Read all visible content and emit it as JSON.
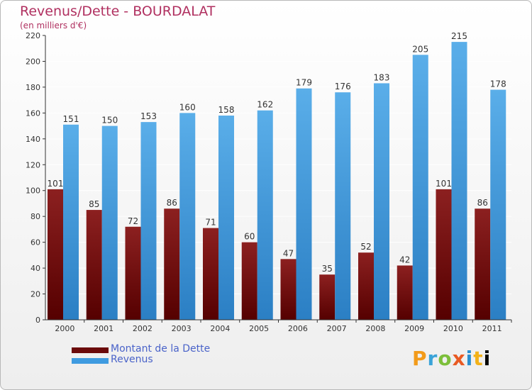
{
  "header": {
    "title": "Revenus/Dette - BOURDALAT",
    "subtitle": "(en milliers d'€)"
  },
  "legend": {
    "items": [
      {
        "label": "Montant de la Dette",
        "color": "#6b0a0a"
      },
      {
        "label": "Revenus",
        "color": "#3f9be0"
      }
    ]
  },
  "logo": {
    "text": "Proxiti"
  },
  "colors": {
    "dette_light": "#8c2020",
    "dette_dark": "#550000",
    "revenus_light": "#5aaee9",
    "revenus_dark": "#2b7fc4",
    "axis": "#333333",
    "grid": "#ffffff"
  },
  "chart_data": {
    "type": "bar",
    "title": "Revenus/Dette - BOURDALAT",
    "subtitle": "(en milliers d'€)",
    "categories": [
      "2000",
      "2001",
      "2002",
      "2003",
      "2004",
      "2005",
      "2006",
      "2007",
      "2008",
      "2009",
      "2010",
      "2011"
    ],
    "series": [
      {
        "name": "Montant de la Dette",
        "values": [
          101,
          85,
          72,
          86,
          71,
          60,
          47,
          35,
          52,
          42,
          101,
          86
        ]
      },
      {
        "name": "Revenus",
        "values": [
          151,
          150,
          153,
          160,
          158,
          162,
          179,
          176,
          183,
          205,
          215,
          178
        ]
      }
    ],
    "ylim": [
      0,
      220
    ],
    "yticks": [
      0,
      20,
      40,
      60,
      80,
      100,
      120,
      140,
      160,
      180,
      200,
      220
    ],
    "grid": true,
    "legend_position": "bottom-left",
    "data_labels": true
  }
}
